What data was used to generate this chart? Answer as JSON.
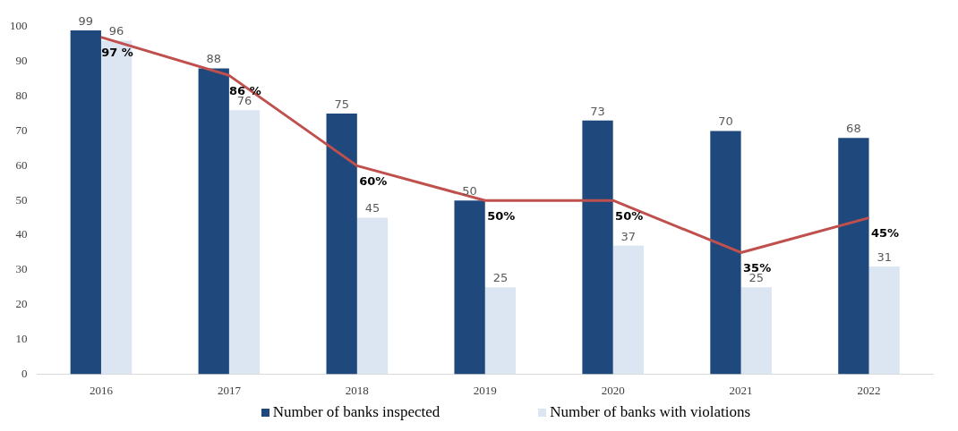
{
  "chart_data": {
    "type": "bar",
    "categories": [
      "2016",
      "2017",
      "2018",
      "2019",
      "2020",
      "2021",
      "2022"
    ],
    "series": [
      {
        "name": "Number of banks inspected",
        "color": "#1f497d",
        "values": [
          99,
          88,
          75,
          50,
          73,
          70,
          68
        ]
      },
      {
        "name": "Number of banks with violations",
        "color": "#dce6f2",
        "values": [
          96,
          76,
          45,
          25,
          37,
          25,
          31
        ]
      },
      {
        "type": "line",
        "color": "#c0504d",
        "values": [
          97,
          86,
          60,
          50,
          50,
          35,
          45
        ],
        "value_labels": [
          "97 %",
          "86 %",
          "60%",
          "50%",
          "50%",
          "35%",
          "45%"
        ]
      }
    ],
    "ylim": [
      0,
      100
    ],
    "yticks": [
      0,
      10,
      20,
      30,
      40,
      50,
      60,
      70,
      80,
      90,
      100
    ],
    "grid": false,
    "legend": "bottom",
    "data_labels": true,
    "marker": "none"
  }
}
